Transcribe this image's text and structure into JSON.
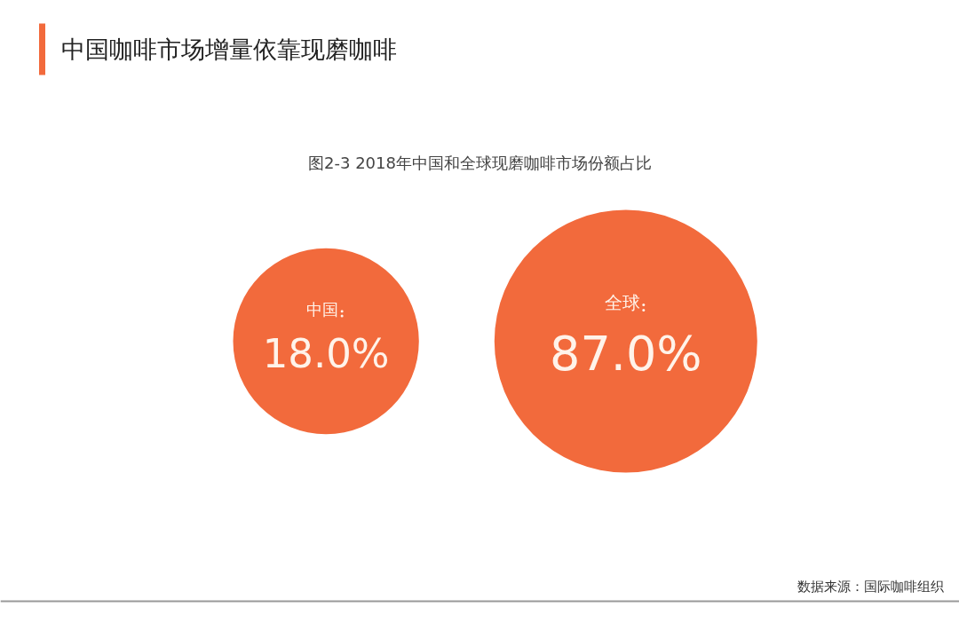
{
  "chart_data": {
    "type": "other",
    "title": "中国咖啡市场增量依靠现磨咖啡",
    "subtitle": "图2-3 2018年中国和全球现磨咖啡市场份额占比",
    "categories": [
      "中国",
      "全球"
    ],
    "values": [
      18.0,
      87.0
    ],
    "value_labels": [
      "18.0%",
      "87.0%"
    ],
    "colors": [
      "#f26a3c",
      "#f26a3c"
    ],
    "annotations": [
      "数据来源：国际咖啡组织"
    ]
  }
}
